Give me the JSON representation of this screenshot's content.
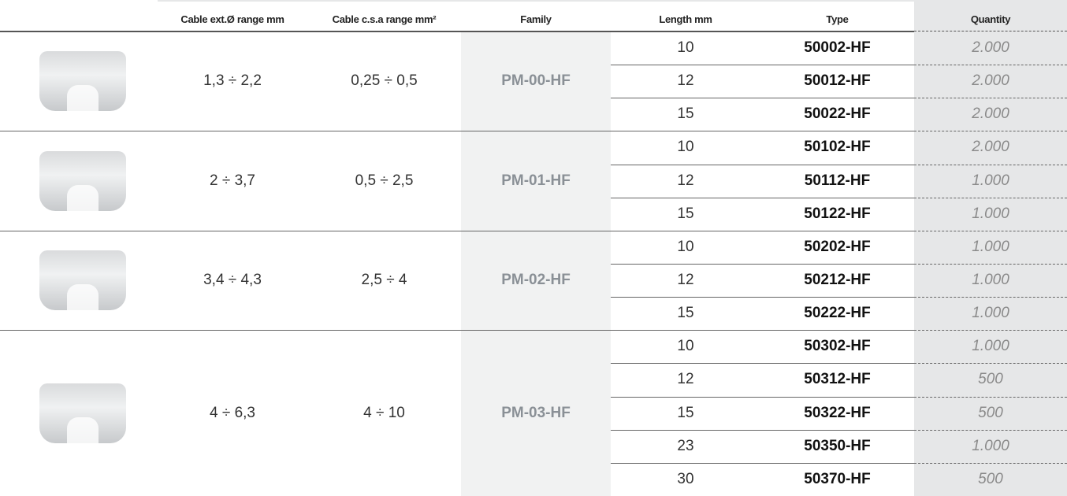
{
  "table": {
    "headers": [
      "Cable ext.Ø range mm",
      "Cable c.s.a range mm²",
      "Family",
      "Length mm",
      "Type",
      "Quantity"
    ],
    "groups": [
      {
        "ext": "1,3 ÷ 2,2",
        "csa": "0,25 ÷ 0,5",
        "family": "PM-00-HF",
        "rows": [
          [
            "10",
            "50002-HF",
            "2.000"
          ],
          [
            "12",
            "50012-HF",
            "2.000"
          ],
          [
            "15",
            "50022-HF",
            "2.000"
          ]
        ]
      },
      {
        "ext": "2 ÷ 3,7",
        "csa": "0,5 ÷ 2,5",
        "family": "PM-01-HF",
        "rows": [
          [
            "10",
            "50102-HF",
            "2.000"
          ],
          [
            "12",
            "50112-HF",
            "1.000"
          ],
          [
            "15",
            "50122-HF",
            "1.000"
          ]
        ]
      },
      {
        "ext": "3,4 ÷ 4,3",
        "csa": "2,5 ÷ 4",
        "family": "PM-02-HF",
        "rows": [
          [
            "10",
            "50202-HF",
            "1.000"
          ],
          [
            "12",
            "50212-HF",
            "1.000"
          ],
          [
            "15",
            "50222-HF",
            "1.000"
          ]
        ]
      },
      {
        "ext": "4 ÷ 6,3",
        "csa": "4 ÷ 10",
        "family": "PM-03-HF",
        "rows": [
          [
            "10",
            "50302-HF",
            "1.000"
          ],
          [
            "12",
            "50312-HF",
            "500"
          ],
          [
            "15",
            "50322-HF",
            "500"
          ],
          [
            "23",
            "50350-HF",
            "1.000"
          ],
          [
            "30",
            "50370-HF",
            "500"
          ]
        ]
      }
    ]
  }
}
